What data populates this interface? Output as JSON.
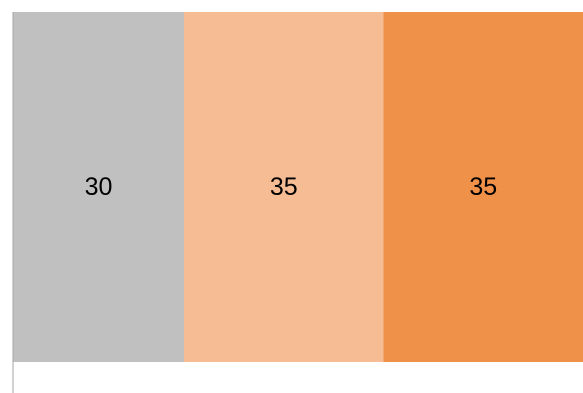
{
  "chart_data": {
    "type": "bar",
    "orientation": "horizontal",
    "stacked": true,
    "categories": [
      ""
    ],
    "series": [
      {
        "values": [
          30
        ],
        "color": "#c0c0c0",
        "data_label": "30"
      },
      {
        "values": [
          35
        ],
        "color": "#f6bc93",
        "data_label": "35"
      },
      {
        "values": [
          35
        ],
        "color": "#f0914a",
        "data_label": "35"
      }
    ],
    "xlim": [
      0,
      100
    ],
    "grid": false,
    "legend": "none",
    "axis_color": "#a6a6a6"
  }
}
